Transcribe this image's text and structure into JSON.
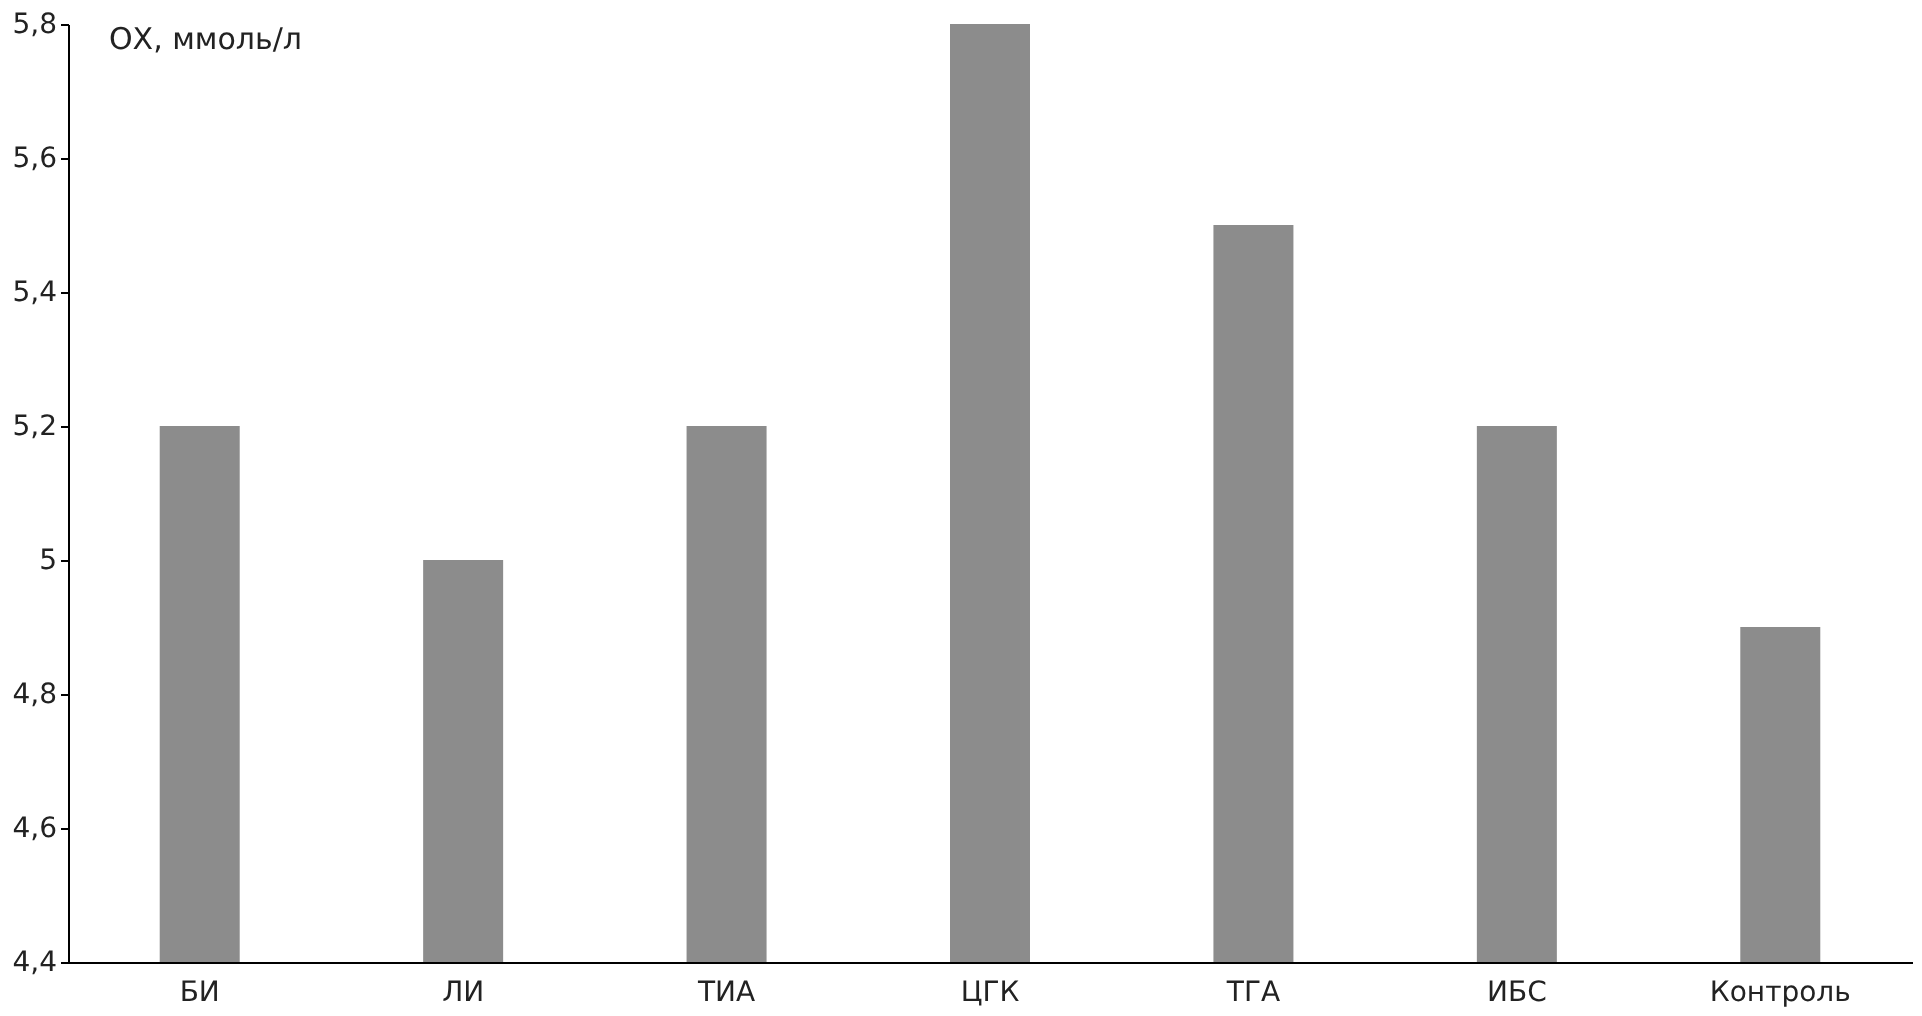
{
  "chart_data": {
    "type": "bar",
    "ylabel": "ОХ, ммоль/л",
    "categories": [
      "БИ",
      "ЛИ",
      "ТИА",
      "ЦГК",
      "ТГА",
      "ИБС",
      "Контроль"
    ],
    "values": [
      5.2,
      5.0,
      5.2,
      5.8,
      5.5,
      5.2,
      4.9
    ],
    "color": "#8c8c8c",
    "ylim": [
      4.4,
      5.8
    ],
    "yticks": [
      {
        "value": 4.4,
        "label": "4,4"
      },
      {
        "value": 4.6,
        "label": "4,6"
      },
      {
        "value": 4.8,
        "label": "4,8"
      },
      5,
      {
        "value": 5.2,
        "label": "5,2"
      },
      {
        "value": 5.4,
        "label": "5,4"
      },
      {
        "value": 5.6,
        "label": "5,6"
      },
      {
        "value": 5.8,
        "label": "5,8"
      }
    ],
    "grid": false
  }
}
